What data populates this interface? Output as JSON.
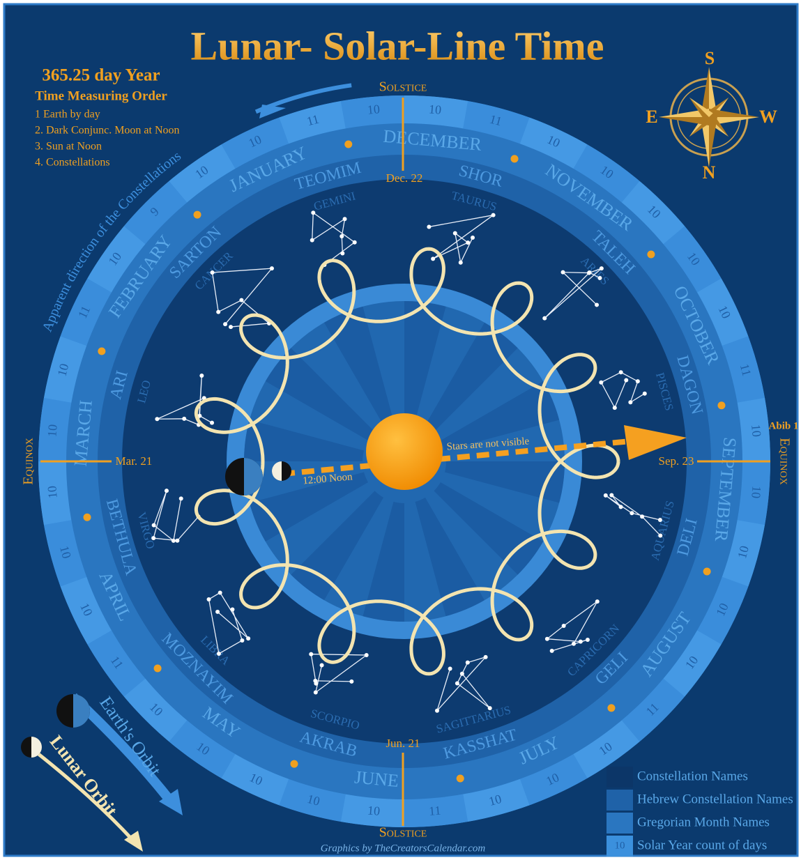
{
  "title": "Lunar- Solar-Line Time",
  "year_info": {
    "heading": "365.25 day Year",
    "subheading": "Time Measuring Order",
    "items": [
      "1  Earth by day",
      "2. Dark Conjunc. Moon at Noon",
      "3. Sun at Noon",
      "4. Constellations"
    ]
  },
  "compass": {
    "south": "S",
    "east": "E",
    "west": "W",
    "north": "N"
  },
  "markers": {
    "solstice_top": "Solstice",
    "solstice_bottom": "Solstice",
    "equinox_left": "Equinox",
    "equinox_right": "Equinox",
    "dec": "Dec. 22",
    "mar": "Mar. 21",
    "jun": "Jun. 21",
    "sep": "Sep. 23",
    "abib": "Abib 1"
  },
  "ring": {
    "day_counts": [
      10,
      11,
      10,
      10,
      10,
      10,
      10,
      11,
      10,
      10,
      10,
      10,
      10,
      11,
      10,
      10,
      10,
      11,
      10,
      10,
      10,
      10,
      10,
      11,
      10,
      10,
      10,
      10,
      10,
      11,
      10,
      9,
      10,
      10,
      11,
      10
    ],
    "months": [
      "DECEMBER",
      "NOVEMBER",
      "OCTOBER",
      "SEPTEMBER",
      "AUGUST",
      "JULY",
      "JUNE",
      "MAY",
      "APRIL",
      "MARCH",
      "FEBRUARY",
      "JANUARY"
    ],
    "hebrew_names": [
      "SHOR",
      "TALEH",
      "DAGON",
      "DELI",
      "GELI",
      "KASSHAT",
      "AKRAB",
      "MOZNAYIM",
      "BETHULA",
      "ARI",
      "SARTON",
      "TEOMIM"
    ],
    "constellations": [
      "TAURUS",
      "ARIES",
      "PISCES",
      "AQUARIUS",
      "CAPRICORN",
      "SAGITTARIUS",
      "SCORPIO",
      "LIBRA",
      "VIRGO",
      "LEO",
      "CANCER",
      "GEMINI"
    ]
  },
  "annotations": {
    "stars": "Stars are not visible",
    "noon": "12:00 Noon",
    "apparent": "Apparent direction of the Constellations",
    "earth_orbit": "Earth's Orbit",
    "lunar_orbit": "Lunar Orbit"
  },
  "legend": {
    "items": [
      "Constellation Names",
      "Hebrew Constellation Names",
      "Gregorian Month Names",
      "Solar Year count of days"
    ],
    "sample_count": 10
  },
  "credit": "Graphics by TheCreatorsCalendar.com"
}
